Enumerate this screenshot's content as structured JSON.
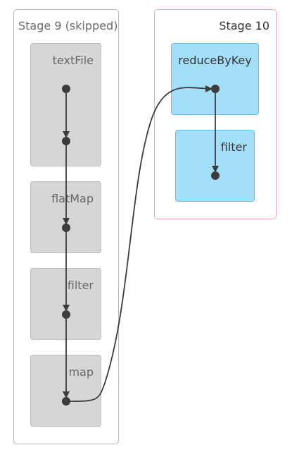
{
  "stages": [
    {
      "id": "stage9",
      "label": "Stage 9 (skipped)",
      "border_color": "#b5b5b5"
    },
    {
      "id": "stage10",
      "label": "Stage 10",
      "border_color": "#f4a3b1"
    }
  ],
  "operations": {
    "textfile": "textFile",
    "flatmap": "flatMap",
    "filter9": "filter",
    "map": "map",
    "reducebykey": "reduceByKey",
    "filter10": "filter"
  },
  "colors": {
    "skipped_op_fill": "#d6d6d6",
    "active_op_fill": "#a3dffb",
    "active_op_border": "#5ec2ee",
    "edge": "#3c3c3c"
  }
}
